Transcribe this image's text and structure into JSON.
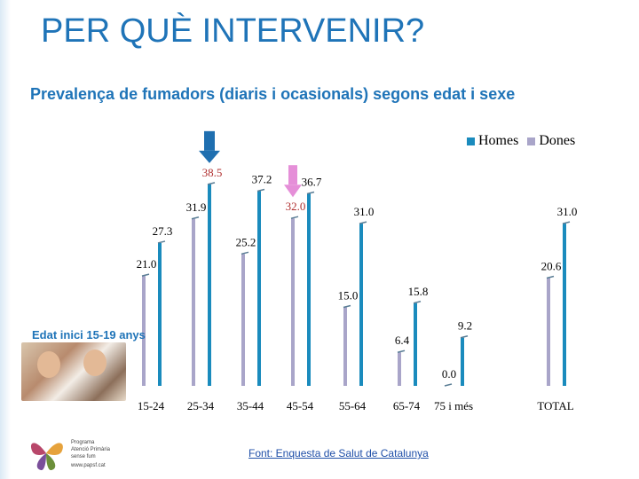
{
  "title": "PER QUÈ INTERVENIR?",
  "subtitle": "Prevalença de fumadors (diaris i ocasionals) segons edat i sexe",
  "note": "Edat inici 15-19 anys",
  "source": "Font: Enquesta de Salut de Catalunya",
  "logo_text": [
    "Programa",
    "Atenció Primària",
    "sense fum",
    "www.papsf.cat"
  ],
  "colors": {
    "title": "#1f74b8",
    "homes": "#1a8bbd",
    "dones": "#a9a5c9",
    "value_highlight": "#b03030",
    "arrow_homes": "#1f6fb0",
    "arrow_dones": "#e58fd8"
  },
  "chart_data": {
    "type": "bar",
    "title": "Prevalença de fumadors (diaris i ocasionals) segons edat i sexe",
    "categories": [
      "15-24",
      "25-34",
      "35-44",
      "45-54",
      "55-64",
      "65-74",
      "75 i més",
      "TOTAL"
    ],
    "series": [
      {
        "name": "Homes",
        "values": [
          27.3,
          38.5,
          37.2,
          36.7,
          31.0,
          15.8,
          9.2,
          31.0
        ]
      },
      {
        "name": "Dones",
        "values": [
          21.0,
          31.9,
          25.2,
          32.0,
          15.0,
          6.4,
          0.0,
          20.6
        ]
      }
    ],
    "value_labels": {
      "Homes": [
        "27.3",
        "38.5",
        "37.2",
        "36.7",
        "31.0",
        "15.8",
        "9.2",
        "31.0"
      ],
      "Dones": [
        "21.0",
        "31.9",
        "25.2",
        "32.0",
        "15.0",
        "6.4",
        "0.0",
        "20.6"
      ]
    },
    "highlighted_labels": {
      "Homes": [
        1
      ],
      "Dones": [
        3
      ]
    },
    "arrows": [
      {
        "series": "Homes",
        "category": "25-34"
      },
      {
        "series": "Dones",
        "category": "45-54"
      }
    ],
    "ylim": [
      0,
      40
    ],
    "legend": "top-right",
    "grid": false
  }
}
